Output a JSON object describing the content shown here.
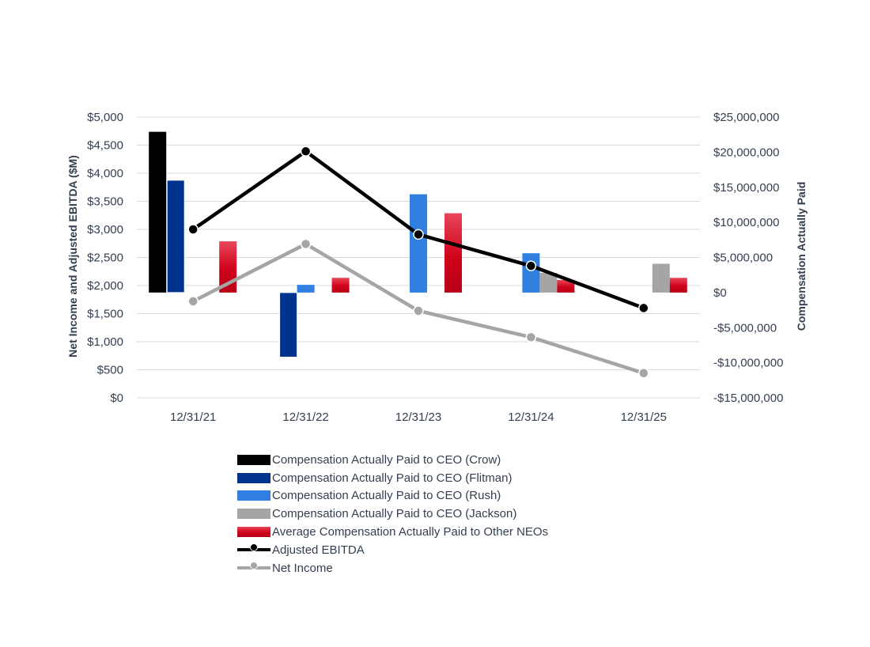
{
  "chart_data": {
    "type": "bar+line",
    "categories": [
      "12/31/21",
      "12/31/22",
      "12/31/23",
      "12/31/24",
      "12/31/25"
    ],
    "left_axis": {
      "title": "Net Income and Adjusted EBITDA ($M)",
      "ylim": [
        0,
        5000
      ],
      "ticks": [
        0,
        500,
        1000,
        1500,
        2000,
        2500,
        3000,
        3500,
        4000,
        4500,
        5000
      ],
      "tick_labels": [
        "$0",
        "$500",
        "$1,000",
        "$1,500",
        "$2,000",
        "$2,500",
        "$3,000",
        "$3,500",
        "$4,000",
        "$4,500",
        "$5,000"
      ]
    },
    "right_axis": {
      "title": "Compensation Actually Paid",
      "ylim": [
        -15000000,
        25000000
      ],
      "ticks": [
        -15000000,
        -10000000,
        -5000000,
        0,
        5000000,
        10000000,
        15000000,
        20000000,
        25000000
      ],
      "tick_labels": [
        "-$15,000,000",
        "-$10,000,000",
        "-$5,000,000",
        "$0",
        "$5,000,000",
        "$10,000,000",
        "$15,000,000",
        "$20,000,000",
        "$25,000,000"
      ]
    },
    "bar_series": [
      {
        "name": "Compensation Actually Paid to CEO (Crow)",
        "color": "#000000",
        "values": [
          22900000,
          null,
          null,
          null,
          null
        ]
      },
      {
        "name": "Compensation Actually Paid to CEO (Flitman)",
        "color": "#00338d",
        "values": [
          16000000,
          -9200000,
          null,
          null,
          null
        ]
      },
      {
        "name": "Compensation Actually Paid to CEO (Rush)",
        "color": "#2f80e0",
        "values": [
          null,
          1100000,
          14000000,
          5600000,
          null
        ]
      },
      {
        "name": "Compensation Actually Paid to CEO (Jackson)",
        "color": "#a5a5a5",
        "values": [
          null,
          null,
          null,
          2800000,
          4100000
        ]
      },
      {
        "name": "Average Compensation Actually Paid to Other NEOs",
        "color": "#d0021b",
        "values": [
          7300000,
          2100000,
          11300000,
          1800000,
          2100000
        ]
      }
    ],
    "line_series": [
      {
        "name": "Adjusted EBITDA",
        "color": "#000000",
        "axis": "left",
        "values": [
          3000,
          4390,
          2910,
          2350,
          1600
        ]
      },
      {
        "name": "Net Income",
        "color": "#a5a5a5",
        "axis": "left",
        "values": [
          1720,
          2740,
          1550,
          1080,
          440
        ]
      }
    ],
    "grid": true,
    "legend_position": "bottom"
  }
}
